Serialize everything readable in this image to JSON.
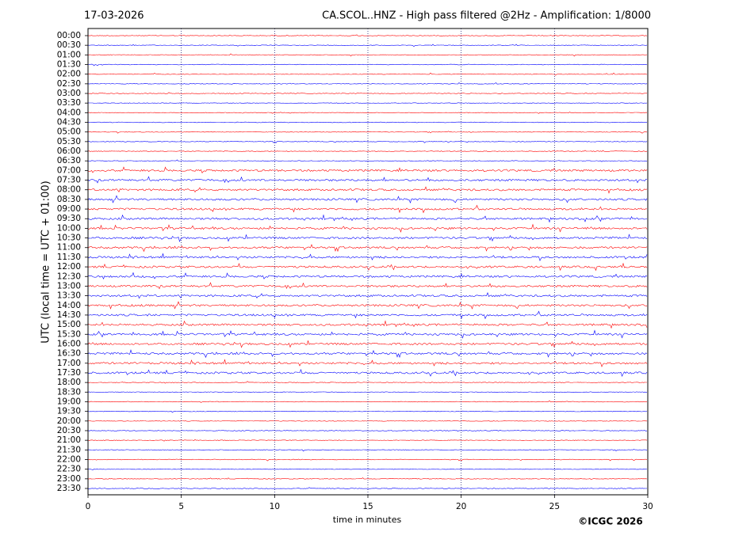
{
  "chart_data": {
    "type": "helicorder",
    "date": "17-03-2026",
    "title": "CA.SCOL..HNZ - High pass filtered @2Hz - Amplification: 1/8000",
    "ylabel": "UTC (local time = UTC + 01:00)",
    "xlabel": "time in minutes",
    "credit": "©ICGC 2026",
    "categories": [
      "00:00",
      "00:30",
      "01:00",
      "01:30",
      "02:00",
      "02:30",
      "03:00",
      "03:30",
      "04:00",
      "04:30",
      "05:00",
      "05:30",
      "06:00",
      "06:30",
      "07:00",
      "07:30",
      "08:00",
      "08:30",
      "09:00",
      "09:30",
      "10:00",
      "10:30",
      "11:00",
      "11:30",
      "12:00",
      "12:30",
      "13:00",
      "13:30",
      "14:00",
      "14:30",
      "15:00",
      "15:30",
      "16:00",
      "16:30",
      "17:00",
      "17:30",
      "18:00",
      "18:30",
      "19:00",
      "19:30",
      "20:00",
      "20:30",
      "21:00",
      "21:30",
      "22:00",
      "22:30",
      "23:00",
      "23:30"
    ],
    "xlim": [
      0,
      30
    ],
    "xticks": [
      0,
      5,
      10,
      15,
      20,
      25,
      30
    ],
    "grid": true,
    "colors": [
      "#ff0000",
      "#0000ff"
    ]
  }
}
